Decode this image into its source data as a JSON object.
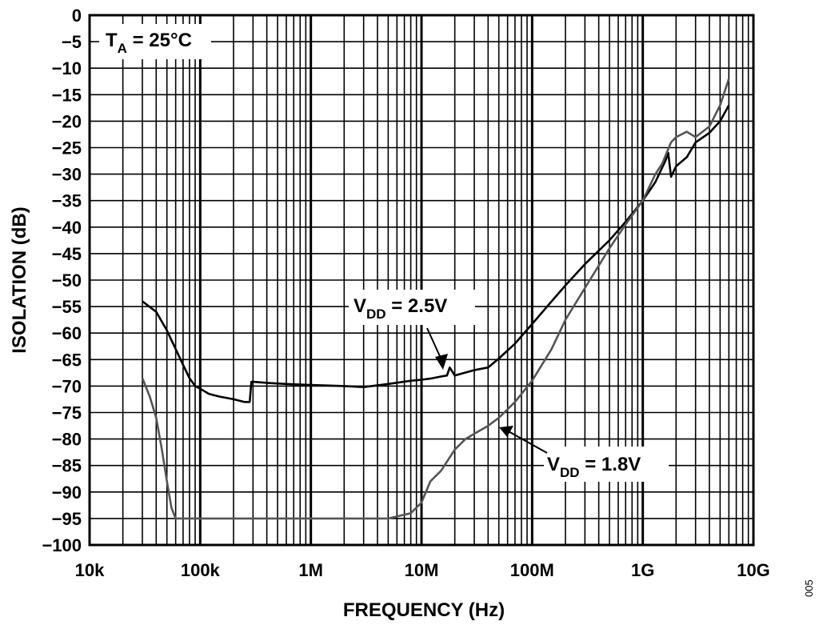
{
  "chart_data": {
    "type": "line",
    "xlabel": "FREQUENCY (Hz)",
    "ylabel": "ISOLATION (dB)",
    "x_scale": "log",
    "xlim": [
      10000,
      10000000000
    ],
    "ylim": [
      -100,
      0
    ],
    "grid": true,
    "x_ticks": [
      {
        "value": 10000,
        "label": "10k"
      },
      {
        "value": 100000,
        "label": "100k"
      },
      {
        "value": 1000000,
        "label": "1M"
      },
      {
        "value": 10000000,
        "label": "10M"
      },
      {
        "value": 100000000,
        "label": "100M"
      },
      {
        "value": 1000000000,
        "label": "1G"
      },
      {
        "value": 10000000000,
        "label": "10G"
      }
    ],
    "y_ticks": [
      {
        "value": 0,
        "label": "0"
      },
      {
        "value": -5,
        "label": "−5"
      },
      {
        "value": -10,
        "label": "−10"
      },
      {
        "value": -15,
        "label": "−15"
      },
      {
        "value": -20,
        "label": "−20"
      },
      {
        "value": -25,
        "label": "−25"
      },
      {
        "value": -30,
        "label": "−30"
      },
      {
        "value": -35,
        "label": "−35"
      },
      {
        "value": -40,
        "label": "−40"
      },
      {
        "value": -45,
        "label": "−45"
      },
      {
        "value": -50,
        "label": "−50"
      },
      {
        "value": -55,
        "label": "−55"
      },
      {
        "value": -60,
        "label": "−60"
      },
      {
        "value": -65,
        "label": "−65"
      },
      {
        "value": -70,
        "label": "−70"
      },
      {
        "value": -75,
        "label": "−75"
      },
      {
        "value": -80,
        "label": "−80"
      },
      {
        "value": -85,
        "label": "−85"
      },
      {
        "value": -90,
        "label": "−90"
      },
      {
        "value": -95,
        "label": "−95"
      },
      {
        "value": -100,
        "label": "−100"
      }
    ],
    "condition": {
      "main": "T",
      "sub": "A",
      "rest": " = 25°C"
    },
    "series": [
      {
        "name": "VDD = 2.5V",
        "label_main": "V",
        "label_sub": "DD",
        "label_rest": " = 2.5V",
        "color": "#000000",
        "x": [
          30000,
          40000,
          50000,
          60000,
          70000,
          80000,
          90000,
          100000,
          120000,
          150000,
          200000,
          250000,
          280000,
          290000,
          300000,
          400000,
          600000,
          1000000,
          2000000,
          3000000,
          5000000,
          8000000,
          10000000,
          12000000,
          15000000,
          17000000,
          18000000,
          20000000,
          30000000,
          40000000,
          50000000,
          70000000,
          100000000,
          150000000,
          200000000,
          300000000,
          500000000,
          700000000,
          1000000000,
          1300000000,
          1600000000,
          1700000000,
          1800000000,
          2000000000,
          2500000000,
          3000000000,
          4000000000,
          5000000000,
          6000000000
        ],
        "y": [
          -54,
          -56,
          -59.5,
          -63,
          -66,
          -68.5,
          -70,
          -70.5,
          -71.5,
          -72,
          -72.5,
          -73,
          -73,
          -69.2,
          -69.2,
          -69.4,
          -69.6,
          -69.8,
          -70,
          -70.2,
          -69.6,
          -69,
          -68.8,
          -68.6,
          -68.2,
          -68,
          -66.5,
          -68,
          -67,
          -66.5,
          -64.8,
          -62,
          -58.3,
          -54,
          -51,
          -47,
          -42.5,
          -39,
          -35,
          -31.5,
          -27.5,
          -26,
          -30.5,
          -28.5,
          -26.8,
          -24,
          -22.2,
          -20,
          -17
        ]
      },
      {
        "name": "VDD = 1.8V",
        "label_main": "V",
        "label_sub": "DD",
        "label_rest": " = 1.8V",
        "color": "#555555",
        "x": [
          30000,
          35000,
          40000,
          45000,
          50000,
          55000,
          60000,
          100000,
          200000,
          400000,
          1000000,
          2000000,
          5000000,
          8000000,
          10000000,
          12000000,
          15000000,
          20000000,
          25000000,
          30000000,
          40000000,
          50000000,
          70000000,
          100000000,
          150000000,
          200000000,
          300000000,
          500000000,
          700000000,
          1000000000,
          1300000000,
          1500000000,
          1800000000,
          2000000000,
          2500000000,
          3000000000,
          4000000000,
          5000000000,
          6000000000
        ],
        "y": [
          -68.5,
          -72,
          -76,
          -82,
          -88,
          -93,
          -95,
          -95,
          -95,
          -95,
          -95,
          -95,
          -95,
          -94,
          -92,
          -88,
          -86,
          -82,
          -80,
          -79,
          -77.5,
          -76,
          -73,
          -69,
          -63,
          -57.5,
          -51.5,
          -44,
          -39.5,
          -35,
          -30,
          -28,
          -24,
          -23,
          -22,
          -23,
          -21,
          -17,
          -12
        ]
      }
    ]
  },
  "figure_id": "005"
}
